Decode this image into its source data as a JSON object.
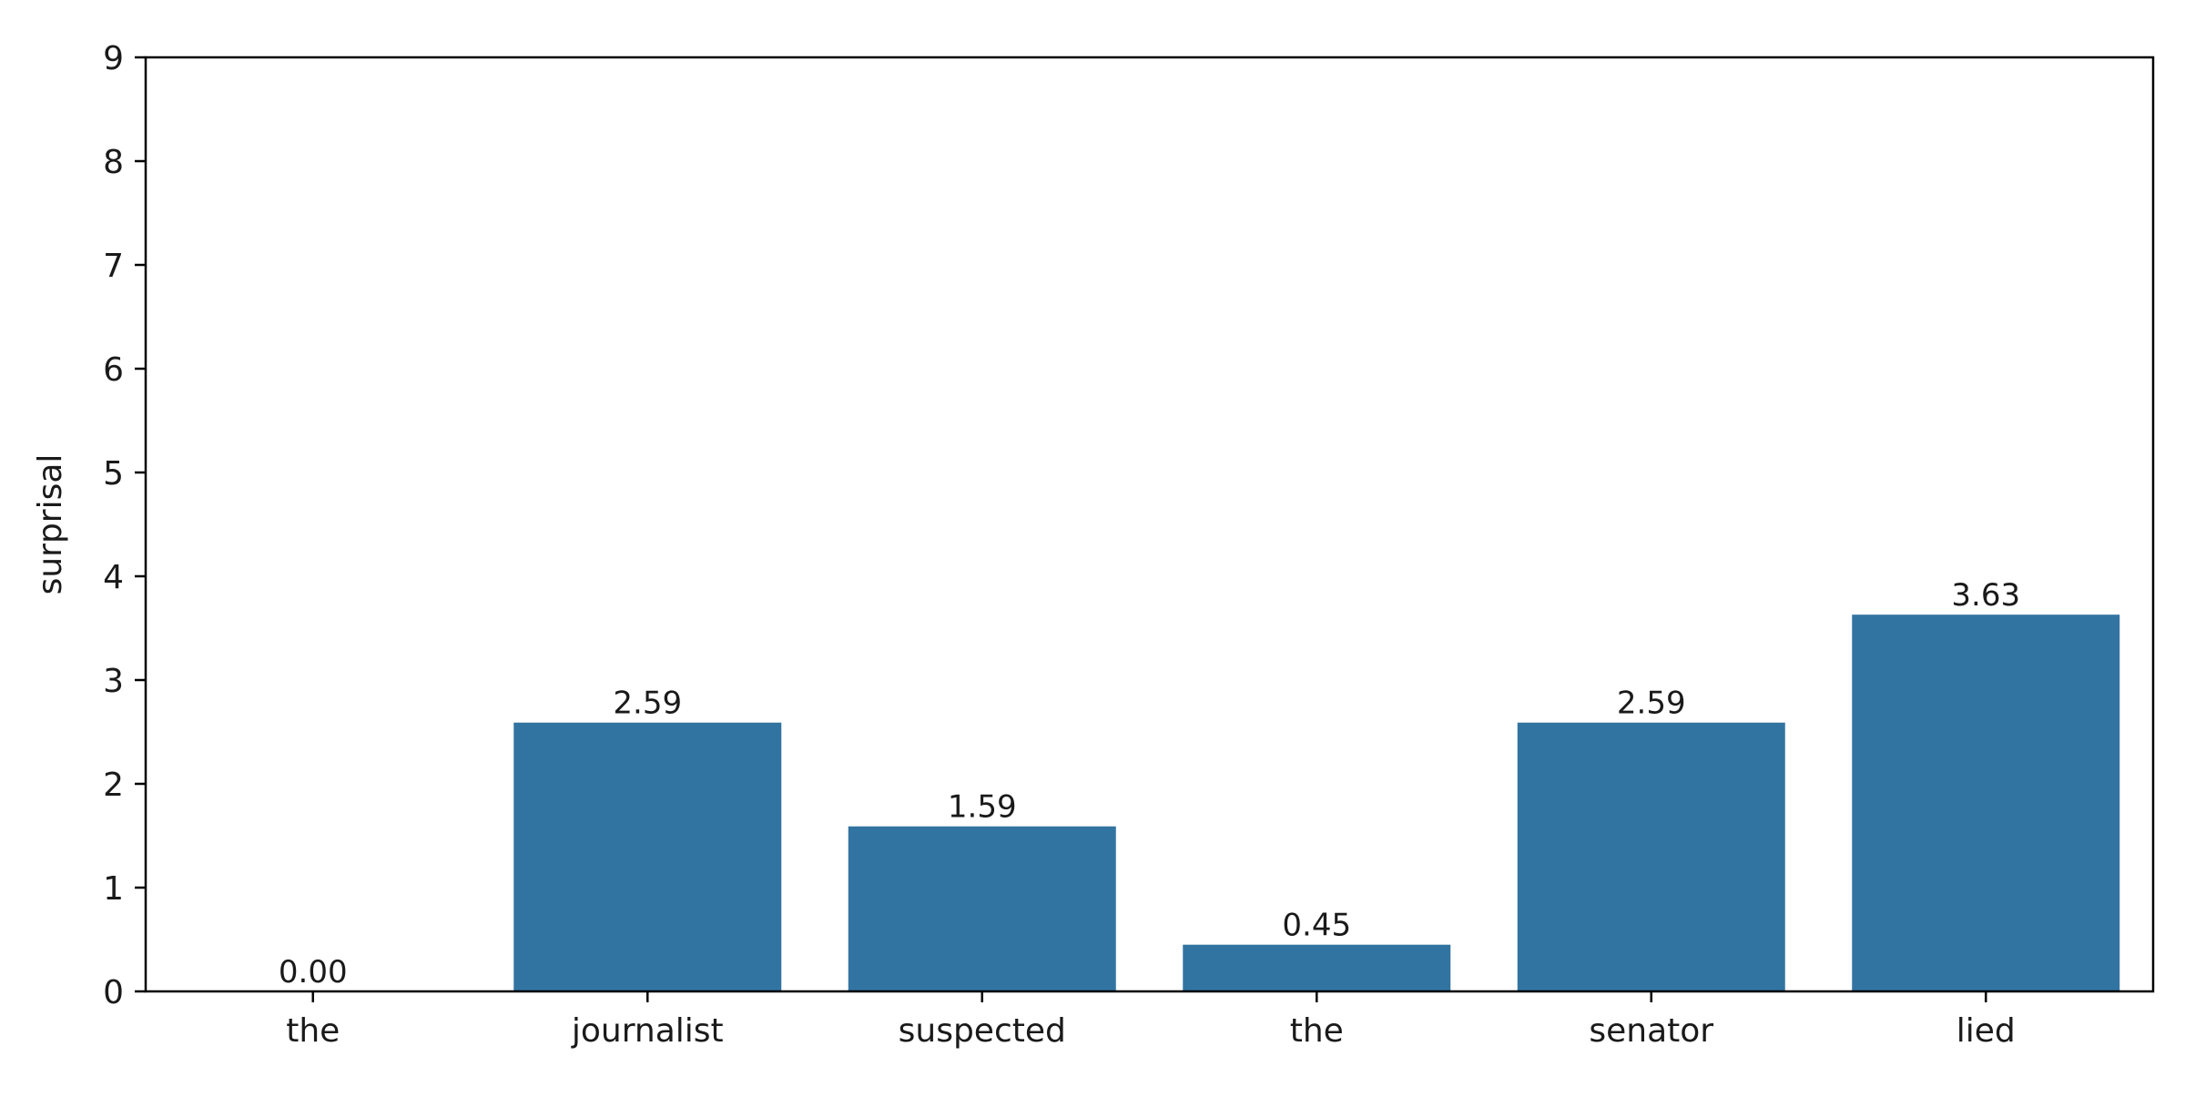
{
  "chart_data": {
    "type": "bar",
    "categories": [
      "the",
      "journalist",
      "suspected",
      "the",
      "senator",
      "lied"
    ],
    "values": [
      0.0,
      2.59,
      1.59,
      0.45,
      2.59,
      3.63
    ],
    "value_labels": [
      "0.00",
      "2.59",
      "1.59",
      "0.45",
      "2.59",
      "3.63"
    ],
    "ylabel": "surprisal",
    "xlabel": "",
    "ylim": [
      0,
      9
    ],
    "yticks": [
      "0",
      "1",
      "2",
      "3",
      "4",
      "5",
      "6",
      "7",
      "8",
      "9"
    ],
    "bar_color": "#3274a1",
    "grid": false,
    "legend": "none"
  }
}
